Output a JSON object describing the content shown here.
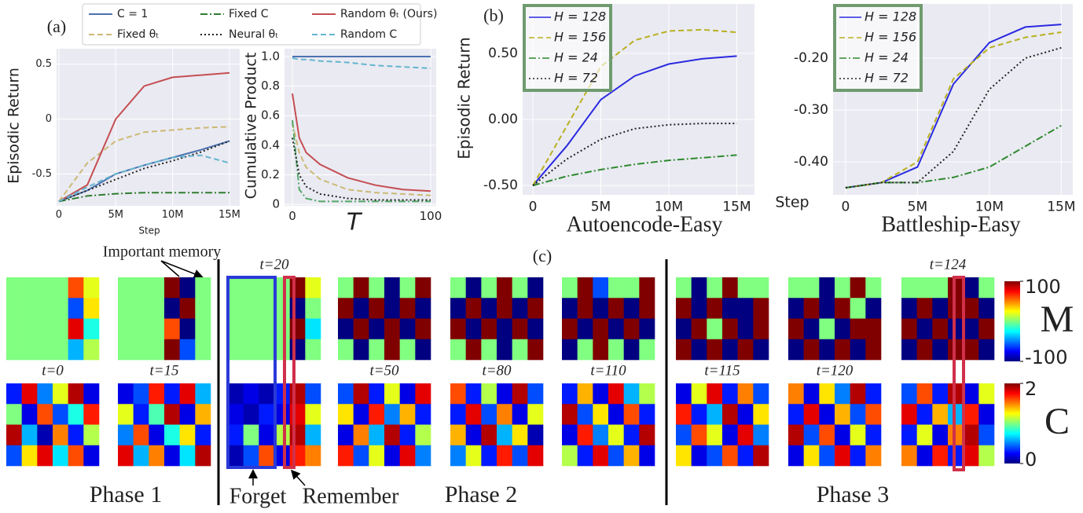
{
  "chart_data": [
    {
      "type": "line",
      "ylabel": "Episodic Return",
      "xlabel": "Step",
      "legend": "upper center",
      "grid": true,
      "background": "#eaeaf2",
      "x": [
        0,
        2500000,
        5000000,
        7500000,
        10000000,
        12500000,
        15000000
      ],
      "xlim": [
        -200000,
        15900000
      ],
      "ylim": [
        -0.79,
        0.64
      ],
      "xticks": [
        0,
        {
          "value": 5000000,
          "label": "5M"
        },
        {
          "value": 10000000,
          "label": "10M"
        },
        {
          "value": 15000000,
          "label": "15M"
        }
      ],
      "yticks": [
        -0.5,
        0,
        0.5
      ],
      "series": [
        {
          "name": "C = 1",
          "color": "#4c72b0",
          "dash": "solid",
          "values": [
            -0.75,
            -0.65,
            -0.5,
            -0.42,
            -0.35,
            -0.28,
            -0.2
          ]
        },
        {
          "name": "Fixed θₜ",
          "color": "#ccb974",
          "dash": "dashed",
          "values": [
            -0.75,
            -0.4,
            -0.2,
            -0.12,
            -0.1,
            -0.08,
            -0.07
          ]
        },
        {
          "name": "Fixed C",
          "color": "#2f7d32",
          "dash": "dashdot",
          "values": [
            -0.75,
            -0.7,
            -0.68,
            -0.67,
            -0.67,
            -0.67,
            -0.67
          ]
        },
        {
          "name": "Neural θₜ",
          "color": "#222222",
          "dash": "dotted",
          "values": [
            -0.75,
            -0.65,
            -0.55,
            -0.45,
            -0.38,
            -0.3,
            -0.2
          ]
        },
        {
          "name": "Random θₜ (Ours)",
          "color": "#c44e52",
          "dash": "solid",
          "values": [
            -0.75,
            -0.6,
            0.0,
            0.3,
            0.38,
            0.4,
            0.42
          ]
        },
        {
          "name": "Random C",
          "color": "#64b5cd",
          "dash": "dashed",
          "values": [
            -0.75,
            -0.62,
            -0.5,
            -0.42,
            -0.35,
            -0.33,
            -0.4
          ]
        }
      ]
    },
    {
      "type": "line",
      "ylabel": "Cumulative Product",
      "xlabel": "T",
      "grid": true,
      "background": "#eaeaf2",
      "x": [
        0,
        5,
        10,
        20,
        40,
        60,
        80,
        100
      ],
      "xlim": [
        -5.7,
        104
      ],
      "ylim": [
        -0.01,
        1.053
      ],
      "xticks": [
        0,
        100
      ],
      "yticks": [
        0,
        0.2,
        0.4,
        0.6,
        0.8,
        {
          "value": 1,
          "label": "1.0"
        }
      ],
      "series": [
        {
          "color": "#4c72b0",
          "dash": "solid",
          "values": [
            1,
            1,
            1,
            1,
            1,
            1,
            1,
            1
          ]
        },
        {
          "color": "#ccb974",
          "dash": "dashed",
          "values": [
            0.55,
            0.35,
            0.25,
            0.17,
            0.1,
            0.08,
            0.07,
            0.06
          ]
        },
        {
          "color": "#55a868",
          "dash": "dashdot",
          "values": [
            0.57,
            0.1,
            0.04,
            0.02,
            0.02,
            0.02,
            0.02,
            0.02
          ]
        },
        {
          "color": "#222222",
          "dash": "dotted",
          "values": [
            0.45,
            0.2,
            0.12,
            0.07,
            0.04,
            0.03,
            0.03,
            0.03
          ]
        },
        {
          "color": "#c44e52",
          "dash": "solid",
          "values": [
            0.75,
            0.45,
            0.35,
            0.27,
            0.18,
            0.13,
            0.1,
            0.09
          ]
        },
        {
          "color": "#64b5cd",
          "dash": "dashed",
          "values": [
            0.99,
            0.98,
            0.98,
            0.97,
            0.96,
            0.94,
            0.93,
            0.92
          ]
        }
      ]
    },
    {
      "type": "line",
      "ylabel": "Episodic Return",
      "xlabel": "Autoencode-Easy",
      "legend": "upper left",
      "grid": true,
      "background": "#eaeaf2",
      "x": [
        0,
        2500000,
        5000000,
        7500000,
        10000000,
        12500000,
        15000000
      ],
      "xlim": [
        -750000,
        16300000
      ],
      "ylim": [
        -0.571,
        0.875
      ],
      "xticks": [
        0,
        {
          "value": 5000000,
          "label": "5M"
        },
        {
          "value": 10000000,
          "label": "10M"
        },
        {
          "value": 15000000,
          "label": "15M"
        }
      ],
      "yticks": [
        {
          "value": -0.5,
          "label": "-0.50"
        },
        {
          "value": 0,
          "label": "0.00"
        },
        {
          "value": 0.5,
          "label": "0.50"
        }
      ],
      "series": [
        {
          "name": "H = 128",
          "color": "#2a2ae0",
          "dash": "solid",
          "values": [
            -0.5,
            -0.2,
            0.15,
            0.33,
            0.42,
            0.46,
            0.48
          ]
        },
        {
          "name": "H = 156",
          "color": "#b8b020",
          "dash": "dashed",
          "values": [
            -0.5,
            -0.05,
            0.4,
            0.6,
            0.67,
            0.68,
            0.66
          ]
        },
        {
          "name": "H = 24",
          "color": "#2f8a2f",
          "dash": "dashdot",
          "values": [
            -0.5,
            -0.43,
            -0.38,
            -0.34,
            -0.31,
            -0.29,
            -0.27
          ]
        },
        {
          "name": "H = 72",
          "color": "#222222",
          "dash": "dotted",
          "values": [
            -0.5,
            -0.3,
            -0.15,
            -0.07,
            -0.04,
            -0.03,
            -0.03
          ]
        }
      ]
    },
    {
      "type": "line",
      "xlabel": "Battleship-Easy",
      "annotation": "Step",
      "legend": "upper left",
      "grid": true,
      "background": "#eaeaf2",
      "x": [
        0,
        2500000,
        5000000,
        7500000,
        10000000,
        12500000,
        15000000
      ],
      "xlim": [
        -870000,
        15800000
      ],
      "ylim": [
        -0.4636,
        -0.0955
      ],
      "xticks": [
        0,
        {
          "value": 5000000,
          "label": "5M"
        },
        {
          "value": 10000000,
          "label": "10M"
        },
        {
          "value": 15000000,
          "label": "15M"
        }
      ],
      "yticks": [
        {
          "value": -0.4,
          "label": "-0.40"
        },
        {
          "value": -0.3,
          "label": "-0.30"
        },
        {
          "value": -0.2,
          "label": "-0.20"
        }
      ],
      "series": [
        {
          "name": "H = 128",
          "color": "#2a2ae0",
          "dash": "solid",
          "values": [
            -0.45,
            -0.44,
            -0.41,
            -0.25,
            -0.17,
            -0.14,
            -0.135
          ]
        },
        {
          "name": "H = 156",
          "color": "#b8b020",
          "dash": "dashed",
          "values": [
            -0.45,
            -0.44,
            -0.4,
            -0.24,
            -0.18,
            -0.16,
            -0.15
          ]
        },
        {
          "name": "H = 24",
          "color": "#2f8a2f",
          "dash": "dashdot",
          "values": [
            -0.45,
            -0.44,
            -0.44,
            -0.43,
            -0.41,
            -0.37,
            -0.33
          ]
        },
        {
          "name": "H = 72",
          "color": "#222222",
          "dash": "dotted",
          "values": [
            -0.45,
            -0.44,
            -0.44,
            -0.38,
            -0.26,
            -0.2,
            -0.18
          ]
        }
      ]
    },
    {
      "type": "heatmap",
      "title": "t=0",
      "memory": [
        [
          0,
          0,
          0,
          0,
          60,
          20
        ],
        [
          0,
          0,
          0,
          0,
          -60,
          30
        ],
        [
          0,
          0,
          0,
          0,
          80,
          -20
        ],
        [
          0,
          0,
          0,
          0,
          -40,
          10
        ]
      ],
      "gate": [
        [
          0.3,
          1.8,
          0.5,
          1.2,
          1.9,
          0.2
        ],
        [
          1.0,
          0.2,
          1.6,
          0.4,
          0.8,
          1.7
        ],
        [
          1.9,
          0.6,
          0.1,
          1.5,
          0.3,
          1.1
        ],
        [
          0.4,
          1.3,
          1.8,
          0.7,
          1.6,
          0.2
        ]
      ]
    },
    {
      "type": "heatmap",
      "title": "t=15",
      "memory": [
        [
          0,
          0,
          0,
          100,
          -100,
          0
        ],
        [
          0,
          0,
          0,
          -100,
          100,
          0
        ],
        [
          0,
          0,
          0,
          60,
          -100,
          0
        ],
        [
          0,
          0,
          0,
          100,
          -60,
          0
        ]
      ],
      "gate": [
        [
          0.2,
          0.4,
          1.7,
          0.3,
          1.8,
          0.6
        ],
        [
          1.2,
          0.3,
          0.9,
          1.9,
          0.2,
          1.4
        ],
        [
          0.5,
          1.6,
          0.2,
          0.8,
          1.3,
          0.3
        ],
        [
          1.8,
          0.6,
          1.5,
          0.2,
          0.7,
          1.9
        ]
      ]
    },
    {
      "type": "heatmap",
      "title": "t=20",
      "memory": [
        [
          0,
          0,
          0,
          0,
          100,
          20
        ],
        [
          0,
          0,
          0,
          0,
          -100,
          0
        ],
        [
          0,
          0,
          0,
          0,
          100,
          -30
        ],
        [
          0,
          0,
          0,
          0,
          -100,
          0
        ]
      ],
      "gate": [
        [
          0.1,
          0.2,
          0.1,
          0.3,
          1.9,
          0.4
        ],
        [
          0.2,
          0.1,
          0.3,
          0.2,
          1.8,
          1.2
        ],
        [
          0.3,
          1.0,
          0.2,
          1.1,
          1.9,
          0.6
        ],
        [
          0.1,
          0.4,
          1.6,
          0.2,
          1.7,
          1.5
        ]
      ]
    },
    {
      "type": "heatmap",
      "title": "t=50",
      "memory": [
        [
          0,
          100,
          0,
          -100,
          0,
          100
        ],
        [
          100,
          -100,
          100,
          -100,
          100,
          -100
        ],
        [
          -100,
          100,
          -100,
          100,
          -100,
          100
        ],
        [
          0,
          -100,
          0,
          100,
          0,
          -100
        ]
      ],
      "gate": [
        [
          0.4,
          1.9,
          0.3,
          1.2,
          0.2,
          1.8
        ],
        [
          1.3,
          0.2,
          1.7,
          0.5,
          1.4,
          0.3
        ],
        [
          0.2,
          1.5,
          0.6,
          1.9,
          0.3,
          1.1
        ],
        [
          1.7,
          0.4,
          1.2,
          0.2,
          1.8,
          0.5
        ]
      ]
    },
    {
      "type": "heatmap",
      "title": "t=80",
      "memory": [
        [
          0,
          -100,
          0,
          100,
          0,
          -100
        ],
        [
          -100,
          100,
          -100,
          100,
          -100,
          100
        ],
        [
          100,
          -100,
          100,
          -100,
          100,
          -100
        ],
        [
          0,
          100,
          0,
          -100,
          0,
          100
        ]
      ],
      "gate": [
        [
          1.6,
          0.3,
          1.1,
          0.2,
          1.9,
          0.4
        ],
        [
          0.3,
          1.8,
          0.4,
          1.5,
          0.2,
          1.2
        ],
        [
          1.4,
          0.2,
          1.9,
          0.6,
          1.3,
          0.1
        ],
        [
          0.5,
          1.2,
          0.3,
          1.7,
          0.4,
          1.8
        ]
      ]
    },
    {
      "type": "heatmap",
      "title": "t=110",
      "memory": [
        [
          0,
          100,
          -60,
          0,
          0,
          100
        ],
        [
          -100,
          100,
          -100,
          100,
          -100,
          100
        ],
        [
          100,
          -100,
          100,
          -100,
          100,
          -100
        ],
        [
          -100,
          0,
          100,
          0,
          -100,
          0
        ]
      ],
      "gate": [
        [
          0.3,
          1.4,
          0.2,
          1.8,
          0.6,
          1.1
        ],
        [
          1.9,
          0.4,
          1.3,
          0.2,
          1.6,
          0.3
        ],
        [
          0.2,
          1.7,
          0.5,
          1.2,
          0.3,
          1.9
        ],
        [
          1.1,
          0.3,
          1.8,
          0.4,
          1.4,
          0.2
        ]
      ]
    },
    {
      "type": "heatmap",
      "title": "t=115",
      "memory": [
        [
          0,
          -100,
          0,
          100,
          0,
          0
        ],
        [
          100,
          -100,
          100,
          -100,
          -100,
          100
        ],
        [
          -100,
          100,
          0,
          100,
          -100,
          100
        ],
        [
          100,
          -100,
          100,
          -100,
          100,
          -100
        ]
      ],
      "gate": [
        [
          0.2,
          1.2,
          1.8,
          0.3,
          1.5,
          0.4
        ],
        [
          1.7,
          0.3,
          0.6,
          1.9,
          0.2,
          1.3
        ],
        [
          0.4,
          1.6,
          1.2,
          0.2,
          1.8,
          0.5
        ],
        [
          1.3,
          0.2,
          0.4,
          1.6,
          0.3,
          1.9
        ]
      ]
    },
    {
      "type": "heatmap",
      "title": "t=120",
      "memory": [
        [
          0,
          0,
          -100,
          0,
          100,
          0
        ],
        [
          -100,
          100,
          -100,
          100,
          0,
          -100
        ],
        [
          100,
          -100,
          0,
          -100,
          100,
          100
        ],
        [
          -100,
          100,
          -100,
          100,
          -100,
          100
        ]
      ],
      "gate": [
        [
          1.5,
          0.2,
          1.3,
          0.5,
          1.9,
          0.3
        ],
        [
          0.3,
          1.8,
          0.2,
          1.4,
          0.4,
          1.6
        ],
        [
          1.9,
          0.4,
          1.6,
          0.2,
          1.2,
          0.3
        ],
        [
          0.2,
          1.3,
          0.4,
          1.8,
          0.3,
          1.5
        ]
      ]
    },
    {
      "type": "heatmap",
      "title": "t=124",
      "memory": [
        [
          0,
          0,
          0,
          100,
          -100,
          0
        ],
        [
          -100,
          100,
          -100,
          100,
          100,
          -100
        ],
        [
          100,
          -100,
          100,
          -100,
          -100,
          100
        ],
        [
          -100,
          100,
          -100,
          100,
          100,
          -100
        ]
      ],
      "gate": [
        [
          0.4,
          1.6,
          0.3,
          1.9,
          0.2,
          1.2
        ],
        [
          1.8,
          0.3,
          1.4,
          0.6,
          1.7,
          0.2
        ],
        [
          0.3,
          1.2,
          0.2,
          1.5,
          1.9,
          0.4
        ],
        [
          1.5,
          0.2,
          1.7,
          0.3,
          1.8,
          1.1
        ]
      ]
    },
    {
      "type": "colorbar",
      "for": "memory",
      "label": "M",
      "lim": [
        -100,
        100
      ],
      "ticks": [
        100,
        -100
      ]
    },
    {
      "type": "colorbar",
      "for": "gate",
      "label": "C",
      "lim": [
        0,
        2
      ],
      "ticks": [
        2,
        0
      ]
    }
  ],
  "annotations": {
    "panels": [
      "(a)",
      "(b)",
      "(c)"
    ],
    "important": "Important memory",
    "phases": [
      "Phase 1",
      "Phase 2",
      "Phase 3"
    ],
    "forget": "Forget",
    "remember": "Remember"
  }
}
